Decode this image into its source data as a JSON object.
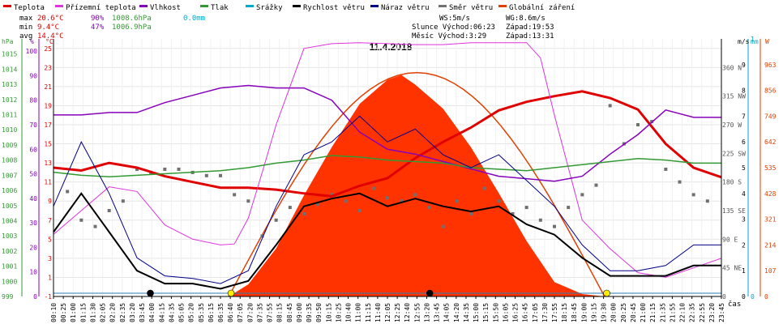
{
  "legend": [
    {
      "label": "Teplota",
      "color": "#e00000"
    },
    {
      "label": "Přízemní teplota",
      "color": "#dd33dd"
    },
    {
      "label": "Vlhkost",
      "color": "#8800bb"
    },
    {
      "label": "Tlak",
      "color": "#339933"
    },
    {
      "label": "Srážky",
      "color": "#00aacc"
    },
    {
      "label": "Rychlost větru",
      "color": "#000000"
    },
    {
      "label": "Náraz větru",
      "color": "#00008b"
    },
    {
      "label": "Směr větru",
      "color": "#707070"
    },
    {
      "label": "Globální záření",
      "color": "#e04000"
    }
  ],
  "stats": {
    "max": {
      "label": "max",
      "temp": "20.6°C",
      "hum": "90%",
      "press": "1008.6hPa",
      "rain": "0.0mm"
    },
    "min": {
      "label": "min",
      "temp": "9.4°C",
      "hum": "47%",
      "press": "1006.9hPa"
    },
    "avg": {
      "label": "avg",
      "temp": "14.4°C"
    }
  },
  "sun": {
    "ws": "WS:5m/s",
    "wg": "WG:8.6m/s",
    "sunrise_row": "Slunce Východ:06:23",
    "sunset": "Západ:19:53",
    "moonrise_row": "Měsíc  Východ:3:29",
    "moonset": "Západ:13:31"
  },
  "axis_units": {
    "hpa": "hPa",
    "pct": "%",
    "degc": "°C",
    "ms": "m/s",
    "mm": "mm",
    "w": "W",
    "time": "čas"
  },
  "chart_data": {
    "type": "line",
    "title": "11.4.2018",
    "xlabel": "čas",
    "x_ticks": [
      "00:10",
      "00:25",
      "01:00",
      "01:15",
      "01:30",
      "02:05",
      "02:20",
      "02:35",
      "03:20",
      "03:45",
      "04:00",
      "04:15",
      "04:35",
      "05:05",
      "05:20",
      "05:35",
      "06:15",
      "06:35",
      "06:40",
      "07:05",
      "07:20",
      "07:35",
      "07:55",
      "08:15",
      "08:45",
      "09:00",
      "09:35",
      "09:50",
      "10:15",
      "10:25",
      "10:40",
      "11:00",
      "11:15",
      "11:40",
      "12:05",
      "12:25",
      "12:40",
      "12:55",
      "13:20",
      "13:45",
      "14:05",
      "14:20",
      "14:35",
      "15:00",
      "15:15",
      "15:50",
      "16:05",
      "16:25",
      "16:45",
      "17:05",
      "17:30",
      "17:55",
      "18:15",
      "18:45",
      "19:00",
      "19:15",
      "19:30",
      "20:00",
      "20:25",
      "20:45",
      "21:00",
      "21:15",
      "21:35",
      "21:55",
      "22:10",
      "22:35",
      "22:55",
      "23:20",
      "23:45"
    ],
    "axes": {
      "pressure": {
        "label": "hPa",
        "range": [
          999,
          1016
        ],
        "ticks": [
          999,
          1000,
          1001,
          1002,
          1003,
          1004,
          1005,
          1006,
          1007,
          1008,
          1009,
          1010,
          1011,
          1012,
          1013,
          1014,
          1015
        ]
      },
      "humidity": {
        "label": "%",
        "range": [
          0,
          105
        ],
        "ticks": [
          0,
          10,
          20,
          30,
          40,
          50,
          60,
          70,
          80,
          90,
          100
        ]
      },
      "temperature": {
        "label": "°C",
        "range": [
          -1,
          26
        ],
        "ticks": [
          -1,
          1,
          3,
          5,
          7,
          9,
          11,
          13,
          15,
          17,
          19,
          21,
          23,
          25
        ]
      },
      "wind_dir": {
        "ticks": [
          {
            "v": 0,
            "t": "0"
          },
          {
            "v": 45,
            "t": "45 NE"
          },
          {
            "v": 90,
            "t": "90 E"
          },
          {
            "v": 135,
            "t": "135 SE"
          },
          {
            "v": 180,
            "t": "180 S"
          },
          {
            "v": 225,
            "t": "225 SW"
          },
          {
            "v": 270,
            "t": "270 W"
          },
          {
            "v": 315,
            "t": "315 NW"
          },
          {
            "v": 360,
            "t": "360 N"
          }
        ]
      },
      "wind_speed": {
        "label": "m/s",
        "range": [
          0,
          10
        ],
        "ticks": [
          0,
          1,
          2,
          3,
          4,
          5,
          6,
          7,
          8,
          9
        ]
      },
      "rain": {
        "label": "mm",
        "range": [
          0,
          1
        ],
        "ticks": [
          0,
          1
        ]
      },
      "radiation": {
        "label": "W",
        "range": [
          0,
          1070
        ],
        "ticks": [
          0,
          107,
          214,
          321,
          428,
          535,
          642,
          749,
          856,
          963
        ]
      }
    },
    "series": [
      {
        "name": "Teplota",
        "color": "#e00000",
        "unit": "°C",
        "x": [
          0,
          1,
          2,
          3,
          4,
          5,
          6,
          7,
          8,
          9,
          10,
          11,
          12,
          13,
          14,
          15,
          16,
          17,
          18,
          19,
          20,
          21,
          22,
          23,
          24
        ],
        "values": [
          12.5,
          12.2,
          13.0,
          12.5,
          11.6,
          11.0,
          10.4,
          10.4,
          10.2,
          9.8,
          9.5,
          10.6,
          11.4,
          13.5,
          15.2,
          16.7,
          18.5,
          19.4,
          20.0,
          20.5,
          19.8,
          18.6,
          15.0,
          12.5,
          11.5
        ]
      },
      {
        "name": "Přízemní teplota",
        "color": "#dd33dd",
        "unit": "°C",
        "x": [
          0,
          1,
          2,
          3,
          4,
          5,
          6,
          6.5,
          7,
          7.5,
          8,
          8.5,
          9,
          10,
          11,
          12,
          13,
          14,
          15,
          16,
          17,
          17.5,
          18,
          19,
          20,
          21,
          22,
          23,
          24
        ],
        "values": [
          5.5,
          8.0,
          10.5,
          10.0,
          6.5,
          5.0,
          4.4,
          4.5,
          7.2,
          12.0,
          17.0,
          21.0,
          25.0,
          25.5,
          25.6,
          25.5,
          25.4,
          25.4,
          25.6,
          25.6,
          25.6,
          24.0,
          18.0,
          7.0,
          4.0,
          1.5,
          1.0,
          2.0,
          3.0
        ]
      },
      {
        "name": "Vlhkost",
        "color": "#8800bb",
        "unit": "%",
        "x": [
          0,
          1,
          2,
          3,
          4,
          5,
          6,
          7,
          8,
          9,
          10,
          11,
          12,
          13,
          14,
          15,
          16,
          17,
          18,
          19,
          20,
          21,
          22,
          23,
          24
        ],
        "values": [
          74,
          74,
          75,
          75,
          79,
          82,
          85,
          86,
          85,
          85,
          80,
          67,
          60,
          58,
          55,
          52,
          49,
          48,
          47,
          49,
          58,
          66,
          76,
          73,
          73
        ]
      },
      {
        "name": "Tlak",
        "color": "#339933",
        "unit": "hPa",
        "x": [
          0,
          1,
          2,
          3,
          4,
          5,
          6,
          7,
          8,
          9,
          10,
          11,
          12,
          13,
          14,
          15,
          16,
          17,
          18,
          19,
          20,
          21,
          22,
          23,
          24
        ],
        "values": [
          1007.2,
          1007.0,
          1006.9,
          1007.0,
          1007.1,
          1007.2,
          1007.3,
          1007.5,
          1007.8,
          1008.0,
          1008.3,
          1008.2,
          1008.0,
          1007.9,
          1007.8,
          1007.5,
          1007.4,
          1007.3,
          1007.5,
          1007.7,
          1007.9,
          1008.1,
          1008.0,
          1007.8,
          1007.8
        ]
      },
      {
        "name": "Rychlost větru",
        "color": "#000000",
        "unit": "m/s",
        "x": [
          0,
          1,
          2,
          3,
          4,
          5,
          6,
          7,
          8,
          9,
          10,
          11,
          12,
          13,
          14,
          15,
          16,
          17,
          18,
          19,
          20,
          21,
          22,
          23,
          24
        ],
        "values": [
          2.5,
          4.0,
          2.5,
          1.0,
          0.5,
          0.5,
          0.3,
          0.6,
          2.0,
          3.5,
          3.8,
          4.0,
          3.5,
          3.8,
          3.5,
          3.3,
          3.5,
          2.8,
          2.4,
          1.5,
          0.8,
          0.8,
          0.8,
          1.2,
          1.2
        ]
      },
      {
        "name": "Náraz větru",
        "color": "#00008b",
        "unit": "m/s",
        "x": [
          0,
          1,
          2,
          3,
          4,
          5,
          6,
          7,
          8,
          9,
          10,
          11,
          12,
          13,
          14,
          15,
          16,
          17,
          18,
          19,
          20,
          21,
          22,
          23,
          24
        ],
        "values": [
          3.5,
          6.0,
          4.0,
          1.5,
          0.8,
          0.7,
          0.5,
          1.0,
          3.5,
          5.5,
          6.0,
          7.0,
          6.0,
          6.5,
          5.5,
          5.0,
          5.5,
          4.5,
          3.5,
          2.0,
          1.0,
          1.0,
          1.2,
          2.0,
          2.0
        ]
      },
      {
        "name": "Globální záření",
        "color": "#e04000",
        "unit": "W",
        "type": "area",
        "x": [
          6.3,
          7,
          8,
          9,
          10,
          11,
          12,
          12.5,
          13,
          14,
          15,
          16,
          17,
          18,
          19,
          19.8
        ],
        "values": [
          0,
          50,
          200,
          420,
          620,
          800,
          900,
          920,
          880,
          780,
          620,
          430,
          230,
          60,
          10,
          0
        ]
      },
      {
        "name": "Směr větru",
        "color": "#707070",
        "unit": "°",
        "type": "scatter",
        "x": [
          0.5,
          1,
          1.5,
          2,
          2.5,
          3,
          3.5,
          4,
          4.5,
          5,
          5.5,
          6,
          6.5,
          7,
          7.5,
          8,
          8.5,
          9,
          9.5,
          10,
          10.5,
          11,
          11.5,
          12,
          12.5,
          13,
          13.5,
          14,
          14.5,
          15,
          15.5,
          16,
          16.5,
          17,
          17.5,
          18,
          18.5,
          19,
          19.5,
          20,
          20.5,
          21,
          21.5,
          22,
          22.5,
          23,
          23.5
        ],
        "values": [
          165,
          120,
          110,
          135,
          150,
          200,
          195,
          200,
          200,
          195,
          190,
          190,
          160,
          150,
          95,
          120,
          140,
          130,
          145,
          160,
          150,
          135,
          170,
          155,
          150,
          160,
          140,
          110,
          150,
          130,
          170,
          150,
          130,
          140,
          120,
          110,
          140,
          160,
          175,
          300,
          240,
          270,
          275,
          200,
          180,
          160,
          150
        ]
      }
    ],
    "markers": [
      {
        "label": "Východ slunce",
        "time": 6.38,
        "color": "#ffee00"
      },
      {
        "label": "Západ slunce",
        "time": 19.88,
        "color": "#ffee00"
      },
      {
        "label": "Východ měsíce",
        "time": 3.48,
        "color": "#000000"
      },
      {
        "label": "Západ měsíce",
        "time": 13.52,
        "color": "#000000"
      }
    ]
  }
}
